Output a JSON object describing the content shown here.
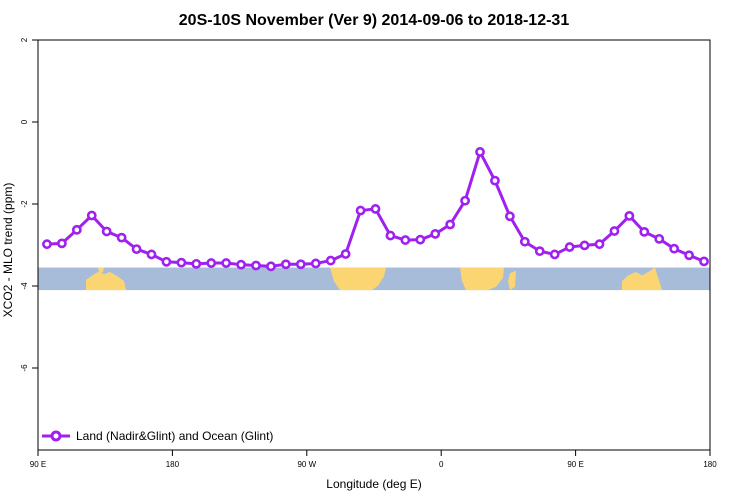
{
  "chart_data": {
    "type": "line",
    "title": "20S-10S November (Ver 9)   2014-09-06 to 2018-12-31",
    "xlabel": "Longitude (deg E)",
    "ylabel": "XCO2 - MLO trend (ppm)",
    "xlim": [
      90,
      540
    ],
    "ylim": [
      -8,
      2
    ],
    "x_ticks": [
      {
        "value": 90,
        "label": "90 E"
      },
      {
        "value": 180,
        "label": "180"
      },
      {
        "value": 270,
        "label": "90 W"
      },
      {
        "value": 360,
        "label": "0"
      },
      {
        "value": 450,
        "label": "90 E"
      },
      {
        "value": 540,
        "label": "180"
      }
    ],
    "y_ticks": [
      {
        "value": 2,
        "label": "2"
      },
      {
        "value": 0,
        "label": "0"
      },
      {
        "value": -2,
        "label": "-2"
      },
      {
        "value": -4,
        "label": "-4"
      },
      {
        "value": -6,
        "label": "-6"
      }
    ],
    "grid": false,
    "legend_position": "bottom-left",
    "series": [
      {
        "name": "Land (Nadir&Glint) and Ocean (Glint)",
        "color": "#a020f0",
        "x": [
          96,
          106,
          116,
          126,
          136,
          146,
          156,
          166,
          176,
          186,
          196,
          206,
          216,
          226,
          236,
          246,
          256,
          266,
          276,
          286,
          296,
          306,
          316,
          326,
          336,
          346,
          356,
          366,
          376,
          386,
          396,
          406,
          416,
          426,
          436,
          446,
          456,
          466,
          476,
          486,
          496,
          506,
          516,
          526,
          536
        ],
        "values": [
          -2.98,
          -2.96,
          -2.63,
          -2.28,
          -2.67,
          -2.82,
          -3.1,
          -3.23,
          -3.41,
          -3.43,
          -3.46,
          -3.44,
          -3.44,
          -3.48,
          -3.5,
          -3.52,
          -3.47,
          -3.47,
          -3.45,
          -3.38,
          -3.22,
          -2.16,
          -2.12,
          -2.77,
          -2.88,
          -2.87,
          -2.73,
          -2.5,
          -1.92,
          -0.73,
          -1.43,
          -2.3,
          -2.92,
          -3.15,
          -3.23,
          -3.05,
          -3.01,
          -2.98,
          -2.66,
          -2.29,
          -2.68,
          -2.85,
          -3.09,
          -3.25,
          -3.4
        ]
      }
    ],
    "map_strip": {
      "ocean_color": "#a7bcd9",
      "land_color": "#fcd573",
      "y_range": [
        -4.1,
        -3.55
      ]
    }
  }
}
